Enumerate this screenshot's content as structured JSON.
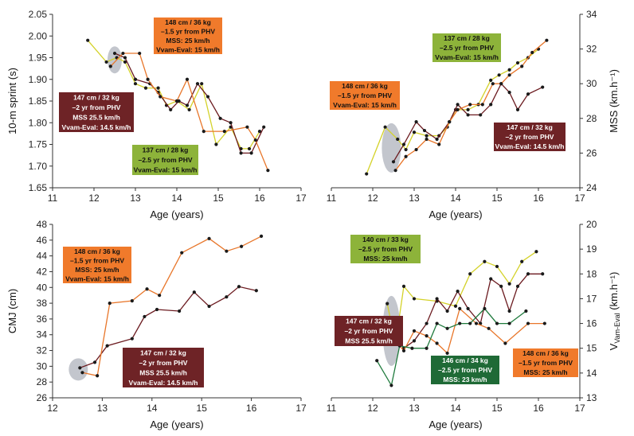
{
  "colors": {
    "yellow": "#d4d22a",
    "maroon": "#6b1a1f",
    "orange": "#e8762a",
    "green": "#1e7a3c",
    "box_green": "#8db33a",
    "box_orange": "#f07a2b",
    "box_maroon": "#6e2326",
    "box_darkgreen": "#1f6a36",
    "ellipse": "#b8bcc4"
  },
  "chart_data": [
    {
      "type": "line",
      "panel": "top-left",
      "xlabel": "Age (years)",
      "ylabel": "10-m sprint (s)",
      "xlim": [
        11,
        17
      ],
      "ylim": [
        1.65,
        2.05
      ],
      "x_ticks": [
        "11",
        "12",
        "13",
        "14",
        "15",
        "16",
        "17"
      ],
      "y_ticks": [
        "1.65",
        "1.70",
        "1.75",
        "1.80",
        "1.85",
        "1.90",
        "1.95",
        "2.00",
        "2.05"
      ],
      "series": [
        {
          "name": "137 cm / 28 kg",
          "color": "yellow",
          "x": [
            11.85,
            12.3,
            12.55,
            12.75,
            13.0,
            13.25,
            13.55,
            13.75,
            14.0,
            14.3,
            14.6,
            14.95,
            15.3,
            15.55,
            15.75,
            16.0
          ],
          "y": [
            1.99,
            1.94,
            1.95,
            1.94,
            1.89,
            1.88,
            1.88,
            1.84,
            1.85,
            1.83,
            1.89,
            1.75,
            1.79,
            1.74,
            1.74,
            1.78
          ]
        },
        {
          "name": "147 cm / 32 kg",
          "color": "maroon",
          "x": [
            12.5,
            12.75,
            13.0,
            13.35,
            13.55,
            13.85,
            14.05,
            14.25,
            14.5,
            14.75,
            15.05,
            15.3,
            15.55,
            15.8,
            16.1
          ],
          "y": [
            1.96,
            1.95,
            1.9,
            1.89,
            1.87,
            1.83,
            1.85,
            1.84,
            1.89,
            1.86,
            1.81,
            1.8,
            1.73,
            1.73,
            1.79
          ]
        },
        {
          "name": "148 cm / 36 kg",
          "color": "orange",
          "x": [
            12.4,
            12.7,
            13.1,
            13.3,
            13.6,
            14.0,
            14.25,
            14.65,
            15.15,
            15.7,
            15.9,
            16.2
          ],
          "y": [
            1.93,
            1.96,
            1.96,
            1.9,
            1.86,
            1.85,
            1.9,
            1.78,
            1.78,
            1.79,
            1.76,
            1.69
          ]
        }
      ],
      "highlight": {
        "x": 12.5,
        "y": 1.945
      },
      "annotations": [
        {
          "box": "box_orange",
          "lines": [
            "148 cm / 36 kg",
            "–1.5 yr from PHV",
            "MSS: 25 km/h",
            "Vvam-Eval: 15 km/h"
          ]
        },
        {
          "box": "box_maroon",
          "lines": [
            "147 cm / 32 kg",
            "–2 yr from PHV",
            "MSS 25.5 km/h",
            "Vvam-Eval: 14.5 km/h"
          ]
        },
        {
          "box": "box_green",
          "lines": [
            "137 cm / 28 kg",
            "–2.5 yr from PHV",
            "Vvam-Eval: 15 km/h"
          ]
        }
      ]
    },
    {
      "type": "line",
      "panel": "top-right",
      "xlabel": "Age (years)",
      "ylabel": "MSS (km.h⁻¹)",
      "xlim": [
        11,
        17
      ],
      "ylim": [
        24,
        34
      ],
      "x_ticks": [
        "11",
        "12",
        "13",
        "14",
        "15",
        "16",
        "17"
      ],
      "y_ticks": [
        "24",
        "26",
        "28",
        "30",
        "32",
        "34"
      ],
      "series": [
        {
          "name": "137 cm / 28 kg",
          "color": "yellow",
          "x": [
            11.85,
            12.3,
            12.6,
            12.8,
            13.0,
            13.3,
            13.6,
            13.8,
            14.0,
            14.3,
            14.55,
            14.85,
            15.05,
            15.3,
            15.5,
            15.75,
            16.0
          ],
          "y": [
            24.8,
            27.5,
            26.8,
            26.2,
            27.2,
            27.0,
            27.0,
            27.5,
            28.5,
            28.5,
            28.8,
            30.2,
            30.5,
            30.8,
            31.2,
            31.5,
            32.0
          ]
        },
        {
          "name": "147 cm / 32 kg",
          "color": "maroon",
          "x": [
            12.5,
            12.75,
            13.05,
            13.25,
            13.55,
            13.85,
            14.05,
            14.3,
            14.6,
            14.85,
            15.1,
            15.3,
            15.5,
            15.75,
            16.1
          ],
          "y": [
            25.5,
            26.5,
            27.8,
            27.3,
            26.8,
            27.8,
            28.8,
            28.2,
            28.2,
            28.8,
            30.0,
            29.5,
            28.5,
            29.4,
            29.8
          ]
        },
        {
          "name": "148 cm / 36 kg",
          "color": "orange",
          "x": [
            12.55,
            12.8,
            13.05,
            13.3,
            13.6,
            13.85,
            14.05,
            14.35,
            14.65,
            14.9,
            15.1,
            15.3,
            15.6,
            15.85,
            16.2
          ],
          "y": [
            25.0,
            25.8,
            26.2,
            26.8,
            26.5,
            27.8,
            28.5,
            28.8,
            28.8,
            30.0,
            30.0,
            30.5,
            31.0,
            31.8,
            32.5
          ]
        }
      ],
      "highlight": {
        "x": 12.45,
        "y": 26.3
      },
      "annotations": [
        {
          "box": "box_green",
          "lines": [
            "137 cm / 28 kg",
            "–2.5 yr from PHV",
            "Vvam-Eval: 15 km/h"
          ]
        },
        {
          "box": "box_orange",
          "lines": [
            "148 cm / 36 kg",
            "–1.5 yr from PHV",
            "Vvam-Eval: 15 km/h"
          ]
        },
        {
          "box": "box_maroon",
          "lines": [
            "147 cm / 32 kg",
            "–2 yr from PHV",
            "Vvam-Eval: 14.5 km/h"
          ]
        }
      ]
    },
    {
      "type": "line",
      "panel": "bottom-left",
      "xlabel": "Age (years)",
      "ylabel": "CMJ (cm)",
      "xlim": [
        12,
        17
      ],
      "ylim": [
        26,
        48
      ],
      "x_ticks": [
        "12",
        "13",
        "14",
        "15",
        "16",
        "17"
      ],
      "y_ticks": [
        "26",
        "28",
        "30",
        "32",
        "34",
        "36",
        "38",
        "40",
        "42",
        "44",
        "46",
        "48"
      ],
      "series": [
        {
          "name": "147 cm / 32 kg",
          "color": "maroon",
          "x": [
            12.55,
            12.85,
            13.1,
            13.6,
            13.85,
            14.1,
            14.55,
            14.85,
            15.15,
            15.5,
            15.75,
            16.1
          ],
          "y": [
            29.8,
            30.5,
            32.6,
            33.5,
            36.3,
            37.2,
            37.0,
            39.4,
            37.6,
            38.8,
            40.1,
            39.6
          ]
        },
        {
          "name": "148 cm / 36 kg",
          "color": "orange",
          "x": [
            12.6,
            12.9,
            13.15,
            13.6,
            13.9,
            14.15,
            14.6,
            15.15,
            15.5,
            15.8,
            16.2
          ],
          "y": [
            29.2,
            28.8,
            38.0,
            38.3,
            39.8,
            39.0,
            44.4,
            46.2,
            44.6,
            45.2,
            46.5
          ]
        }
      ],
      "highlight": {
        "x": 12.55,
        "y": 29.6
      },
      "annotations": [
        {
          "box": "box_orange",
          "lines": [
            "148 cm / 36 kg",
            "–1.5 yr from PHV",
            "MSS: 25 km/h",
            "Vvam-Eval: 15 km/h"
          ]
        },
        {
          "box": "box_maroon",
          "lines": [
            "147 cm / 32 kg",
            "–2 yr from PHV",
            "MSS 25.5 km/h",
            "Vvam-Eval: 14.5 km/h"
          ]
        }
      ]
    },
    {
      "type": "line",
      "panel": "bottom-right",
      "xlabel": "Age (years)",
      "ylabel": "V",
      "ylabel_sub": "Vam-Eval",
      "ylabel_unit": " (km.h⁻¹)",
      "xlim": [
        11,
        17
      ],
      "ylim": [
        13,
        20
      ],
      "x_ticks": [
        "11",
        "12",
        "13",
        "14",
        "15",
        "16",
        "17"
      ],
      "y_ticks": [
        "13",
        "14",
        "15",
        "16",
        "17",
        "18",
        "19",
        "20"
      ],
      "series": [
        {
          "name": "140 cm / 33 kg",
          "color": "yellow",
          "x": [
            12.35,
            12.55,
            12.75,
            13.0,
            13.55,
            14.0,
            14.35,
            14.7,
            15.0,
            15.3,
            15.6,
            15.95
          ],
          "y": [
            16.8,
            15.2,
            17.5,
            17.0,
            16.9,
            16.7,
            18.0,
            18.5,
            18.3,
            17.6,
            18.5,
            18.9
          ]
        },
        {
          "name": "147 cm / 32 kg",
          "color": "maroon",
          "x": [
            12.5,
            12.75,
            13.0,
            13.3,
            13.55,
            13.8,
            14.05,
            14.3,
            14.6,
            14.85,
            15.1,
            15.3,
            15.5,
            15.75,
            16.1
          ],
          "y": [
            15.6,
            15.0,
            15.3,
            16.0,
            17.0,
            16.5,
            17.3,
            16.6,
            16.0,
            17.8,
            17.5,
            16.5,
            17.5,
            18.0,
            18.0
          ]
        },
        {
          "name": "148 cm / 36 kg",
          "color": "orange",
          "x": [
            12.55,
            12.75,
            13.0,
            13.3,
            13.55,
            13.8,
            14.1,
            14.5,
            14.8,
            15.2,
            15.75,
            16.15
          ],
          "y": [
            15.3,
            14.9,
            15.7,
            15.5,
            15.2,
            14.8,
            16.6,
            16.0,
            15.8,
            15.2,
            16.0,
            16.0
          ]
        },
        {
          "name": "146 cm / 34 kg",
          "color": "green",
          "x": [
            12.1,
            12.45,
            12.65,
            12.95,
            13.3,
            13.55,
            13.8,
            14.1,
            14.35,
            14.7,
            15.0,
            15.3,
            15.7
          ],
          "y": [
            14.5,
            13.5,
            15.1,
            15.0,
            15.0,
            16.0,
            15.8,
            16.0,
            16.0,
            16.6,
            16.0,
            16.0,
            16.5
          ]
        }
      ],
      "highlight": {
        "x": 12.45,
        "y": 15.7
      },
      "annotations": [
        {
          "box": "box_green",
          "lines": [
            "140 cm / 33 kg",
            "–2.5 yr from PHV",
            "MSS: 25 km/h"
          ]
        },
        {
          "box": "box_maroon",
          "lines": [
            "147 cm / 32 kg",
            "–2 yr from PHV",
            "MSS 25.5 km/h"
          ]
        },
        {
          "box": "box_darkgreen",
          "lines": [
            "146 cm / 34 kg",
            "–2.5 yr from PHV",
            "MSS: 23 km/h"
          ]
        },
        {
          "box": "box_orange",
          "lines": [
            "148 cm / 36 kg",
            "–1.5 yr from PHV",
            "MSS: 25 km/h"
          ]
        }
      ]
    }
  ]
}
